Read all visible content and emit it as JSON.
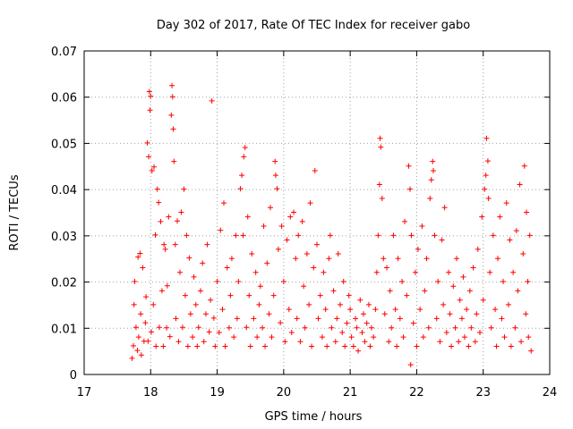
{
  "chart_data": {
    "type": "scatter",
    "title": "Day 302 of 2017, Rate Of TEC Index for receiver gabo",
    "xlabel": "GPS time / hours",
    "ylabel": "ROTI / TECUs",
    "xlim": [
      17,
      24
    ],
    "ylim": [
      0,
      0.07
    ],
    "xticks": [
      "17",
      "18",
      "19",
      "20",
      "21",
      "22",
      "23",
      "24"
    ],
    "yticks": [
      "0",
      "0.01",
      "0.02",
      "0.03",
      "0.04",
      "0.05",
      "0.06",
      "0.07"
    ],
    "grid": true,
    "marker": "+",
    "point_color": "#ff0000",
    "points": [
      [
        17.72,
        0.0035
      ],
      [
        17.74,
        0.0062
      ],
      [
        17.75,
        0.0151
      ],
      [
        17.76,
        0.0201
      ],
      [
        17.78,
        0.0102
      ],
      [
        17.8,
        0.0052
      ],
      [
        17.81,
        0.0254
      ],
      [
        17.82,
        0.0081
      ],
      [
        17.84,
        0.0262
      ],
      [
        17.85,
        0.0131
      ],
      [
        17.86,
        0.0042
      ],
      [
        17.88,
        0.0231
      ],
      [
        17.9,
        0.0072
      ],
      [
        17.92,
        0.0112
      ],
      [
        17.93,
        0.0168
      ],
      [
        17.95,
        0.0501
      ],
      [
        17.96,
        0.0072
      ],
      [
        17.97,
        0.0471
      ],
      [
        17.98,
        0.0612
      ],
      [
        17.99,
        0.0572
      ],
      [
        18.0,
        0.0602
      ],
      [
        18.01,
        0.0092
      ],
      [
        18.02,
        0.0441
      ],
      [
        18.04,
        0.0151
      ],
      [
        18.05,
        0.0449
      ],
      [
        18.07,
        0.0302
      ],
      [
        18.08,
        0.0061
      ],
      [
        18.1,
        0.0401
      ],
      [
        18.12,
        0.0372
      ],
      [
        18.13,
        0.0102
      ],
      [
        18.15,
        0.0331
      ],
      [
        18.17,
        0.0181
      ],
      [
        18.19,
        0.0061
      ],
      [
        18.2,
        0.0281
      ],
      [
        18.22,
        0.0271
      ],
      [
        18.24,
        0.0101
      ],
      [
        18.25,
        0.0192
      ],
      [
        18.27,
        0.0341
      ],
      [
        18.29,
        0.0082
      ],
      [
        18.31,
        0.0561
      ],
      [
        18.32,
        0.0625
      ],
      [
        18.33,
        0.0601
      ],
      [
        18.34,
        0.0531
      ],
      [
        18.35,
        0.0461
      ],
      [
        18.37,
        0.0281
      ],
      [
        18.38,
        0.0121
      ],
      [
        18.4,
        0.0332
      ],
      [
        18.42,
        0.0071
      ],
      [
        18.44,
        0.0221
      ],
      [
        18.46,
        0.0351
      ],
      [
        18.48,
        0.0102
      ],
      [
        18.5,
        0.0401
      ],
      [
        18.52,
        0.0171
      ],
      [
        18.54,
        0.0301
      ],
      [
        18.56,
        0.0061
      ],
      [
        18.58,
        0.0252
      ],
      [
        18.6,
        0.0131
      ],
      [
        18.63,
        0.0081
      ],
      [
        18.65,
        0.0211
      ],
      [
        18.68,
        0.0151
      ],
      [
        18.7,
        0.0061
      ],
      [
        18.72,
        0.0102
      ],
      [
        18.75,
        0.0181
      ],
      [
        18.78,
        0.0241
      ],
      [
        18.8,
        0.0071
      ],
      [
        18.83,
        0.0131
      ],
      [
        18.85,
        0.0281
      ],
      [
        18.88,
        0.0092
      ],
      [
        18.9,
        0.0161
      ],
      [
        18.92,
        0.0592
      ],
      [
        18.95,
        0.0122
      ],
      [
        18.97,
        0.0061
      ],
      [
        19.0,
        0.0201
      ],
      [
        19.03,
        0.0091
      ],
      [
        19.05,
        0.0312
      ],
      [
        19.08,
        0.0141
      ],
      [
        19.1,
        0.0371
      ],
      [
        19.12,
        0.0061
      ],
      [
        19.15,
        0.0231
      ],
      [
        19.18,
        0.0101
      ],
      [
        19.2,
        0.0171
      ],
      [
        19.22,
        0.0251
      ],
      [
        19.25,
        0.0081
      ],
      [
        19.28,
        0.0301
      ],
      [
        19.3,
        0.0121
      ],
      [
        19.32,
        0.0201
      ],
      [
        19.35,
        0.0402
      ],
      [
        19.37,
        0.0431
      ],
      [
        19.39,
        0.0301
      ],
      [
        19.4,
        0.0471
      ],
      [
        19.42,
        0.0491
      ],
      [
        19.44,
        0.0102
      ],
      [
        19.46,
        0.0341
      ],
      [
        19.48,
        0.0171
      ],
      [
        19.5,
        0.0061
      ],
      [
        19.52,
        0.0261
      ],
      [
        19.55,
        0.0121
      ],
      [
        19.58,
        0.0221
      ],
      [
        19.6,
        0.0081
      ],
      [
        19.63,
        0.0151
      ],
      [
        19.65,
        0.0191
      ],
      [
        19.68,
        0.0101
      ],
      [
        19.7,
        0.0321
      ],
      [
        19.72,
        0.0061
      ],
      [
        19.75,
        0.0241
      ],
      [
        19.78,
        0.0131
      ],
      [
        19.8,
        0.0361
      ],
      [
        19.82,
        0.0081
      ],
      [
        19.85,
        0.0171
      ],
      [
        19.87,
        0.0461
      ],
      [
        19.88,
        0.0431
      ],
      [
        19.9,
        0.0402
      ],
      [
        19.92,
        0.0271
      ],
      [
        19.95,
        0.0112
      ],
      [
        19.97,
        0.0321
      ],
      [
        20.0,
        0.0201
      ],
      [
        20.02,
        0.0071
      ],
      [
        20.05,
        0.0291
      ],
      [
        20.08,
        0.0141
      ],
      [
        20.1,
        0.0341
      ],
      [
        20.12,
        0.0091
      ],
      [
        20.15,
        0.0351
      ],
      [
        20.18,
        0.0251
      ],
      [
        20.2,
        0.0121
      ],
      [
        20.22,
        0.0301
      ],
      [
        20.25,
        0.0071
      ],
      [
        20.28,
        0.0331
      ],
      [
        20.3,
        0.0191
      ],
      [
        20.32,
        0.0101
      ],
      [
        20.35,
        0.0261
      ],
      [
        20.38,
        0.0151
      ],
      [
        20.4,
        0.0371
      ],
      [
        20.42,
        0.0061
      ],
      [
        20.45,
        0.0231
      ],
      [
        20.47,
        0.0441
      ],
      [
        20.5,
        0.0281
      ],
      [
        20.52,
        0.0121
      ],
      [
        20.55,
        0.0171
      ],
      [
        20.58,
        0.0081
      ],
      [
        20.6,
        0.0221
      ],
      [
        20.63,
        0.0141
      ],
      [
        20.65,
        0.0061
      ],
      [
        20.68,
        0.0251
      ],
      [
        20.7,
        0.0301
      ],
      [
        20.72,
        0.0101
      ],
      [
        20.75,
        0.0181
      ],
      [
        20.78,
        0.0071
      ],
      [
        20.8,
        0.0121
      ],
      [
        20.82,
        0.0261
      ],
      [
        20.85,
        0.0151
      ],
      [
        20.88,
        0.0091
      ],
      [
        20.9,
        0.0201
      ],
      [
        20.92,
        0.0061
      ],
      [
        20.95,
        0.0111
      ],
      [
        20.98,
        0.0171
      ],
      [
        21.0,
        0.0141
      ],
      [
        21.02,
        0.0081
      ],
      [
        21.05,
        0.0061
      ],
      [
        21.08,
        0.0121
      ],
      [
        21.1,
        0.0101
      ],
      [
        21.12,
        0.0051
      ],
      [
        21.15,
        0.0161
      ],
      [
        21.18,
        0.0091
      ],
      [
        21.2,
        0.0131
      ],
      [
        21.22,
        0.0071
      ],
      [
        21.25,
        0.0111
      ],
      [
        21.28,
        0.0151
      ],
      [
        21.3,
        0.0061
      ],
      [
        21.32,
        0.0101
      ],
      [
        21.35,
        0.0081
      ],
      [
        21.38,
        0.0141
      ],
      [
        21.4,
        0.0221
      ],
      [
        21.42,
        0.0301
      ],
      [
        21.44,
        0.0411
      ],
      [
        21.45,
        0.0511
      ],
      [
        21.46,
        0.0492
      ],
      [
        21.48,
        0.0381
      ],
      [
        21.5,
        0.0251
      ],
      [
        21.52,
        0.0131
      ],
      [
        21.55,
        0.0231
      ],
      [
        21.58,
        0.0071
      ],
      [
        21.6,
        0.0181
      ],
      [
        21.62,
        0.0101
      ],
      [
        21.65,
        0.0301
      ],
      [
        21.68,
        0.0141
      ],
      [
        21.7,
        0.0061
      ],
      [
        21.72,
        0.0251
      ],
      [
        21.75,
        0.0121
      ],
      [
        21.78,
        0.0201
      ],
      [
        21.8,
        0.0081
      ],
      [
        21.82,
        0.0331
      ],
      [
        21.85,
        0.0171
      ],
      [
        21.88,
        0.0451
      ],
      [
        21.9,
        0.0401
      ],
      [
        21.91,
        0.0021
      ],
      [
        21.92,
        0.0301
      ],
      [
        21.95,
        0.0111
      ],
      [
        21.98,
        0.0221
      ],
      [
        22.0,
        0.0061
      ],
      [
        22.02,
        0.0271
      ],
      [
        22.05,
        0.0141
      ],
      [
        22.08,
        0.0321
      ],
      [
        22.1,
        0.0081
      ],
      [
        22.12,
        0.0181
      ],
      [
        22.15,
        0.0251
      ],
      [
        22.18,
        0.0101
      ],
      [
        22.2,
        0.0381
      ],
      [
        22.22,
        0.0421
      ],
      [
        22.24,
        0.0461
      ],
      [
        22.25,
        0.0441
      ],
      [
        22.27,
        0.0301
      ],
      [
        22.3,
        0.0121
      ],
      [
        22.32,
        0.0201
      ],
      [
        22.35,
        0.0071
      ],
      [
        22.38,
        0.0291
      ],
      [
        22.4,
        0.0151
      ],
      [
        22.42,
        0.0361
      ],
      [
        22.45,
        0.0091
      ],
      [
        22.48,
        0.0221
      ],
      [
        22.5,
        0.0131
      ],
      [
        22.52,
        0.0061
      ],
      [
        22.55,
        0.0191
      ],
      [
        22.58,
        0.0101
      ],
      [
        22.6,
        0.0251
      ],
      [
        22.63,
        0.0071
      ],
      [
        22.65,
        0.0161
      ],
      [
        22.68,
        0.0121
      ],
      [
        22.7,
        0.0211
      ],
      [
        22.72,
        0.0081
      ],
      [
        22.75,
        0.0141
      ],
      [
        22.78,
        0.0061
      ],
      [
        22.8,
        0.0181
      ],
      [
        22.82,
        0.0101
      ],
      [
        22.85,
        0.0231
      ],
      [
        22.88,
        0.0071
      ],
      [
        22.9,
        0.0131
      ],
      [
        22.92,
        0.0271
      ],
      [
        22.95,
        0.0091
      ],
      [
        22.98,
        0.0341
      ],
      [
        23.0,
        0.0161
      ],
      [
        23.02,
        0.0401
      ],
      [
        23.04,
        0.0431
      ],
      [
        23.05,
        0.0511
      ],
      [
        23.07,
        0.0462
      ],
      [
        23.08,
        0.0381
      ],
      [
        23.1,
        0.0221
      ],
      [
        23.12,
        0.0101
      ],
      [
        23.15,
        0.0301
      ],
      [
        23.18,
        0.0141
      ],
      [
        23.2,
        0.0061
      ],
      [
        23.22,
        0.0251
      ],
      [
        23.25,
        0.0341
      ],
      [
        23.28,
        0.0121
      ],
      [
        23.3,
        0.0201
      ],
      [
        23.32,
        0.0081
      ],
      [
        23.35,
        0.0371
      ],
      [
        23.38,
        0.0151
      ],
      [
        23.4,
        0.0291
      ],
      [
        23.42,
        0.0061
      ],
      [
        23.45,
        0.0221
      ],
      [
        23.48,
        0.0101
      ],
      [
        23.5,
        0.0311
      ],
      [
        23.52,
        0.0181
      ],
      [
        23.55,
        0.0411
      ],
      [
        23.57,
        0.0071
      ],
      [
        23.6,
        0.0261
      ],
      [
        23.62,
        0.0451
      ],
      [
        23.64,
        0.0131
      ],
      [
        23.65,
        0.0351
      ],
      [
        23.67,
        0.0201
      ],
      [
        23.68,
        0.0081
      ],
      [
        23.7,
        0.0301
      ],
      [
        23.72,
        0.0051
      ]
    ]
  }
}
